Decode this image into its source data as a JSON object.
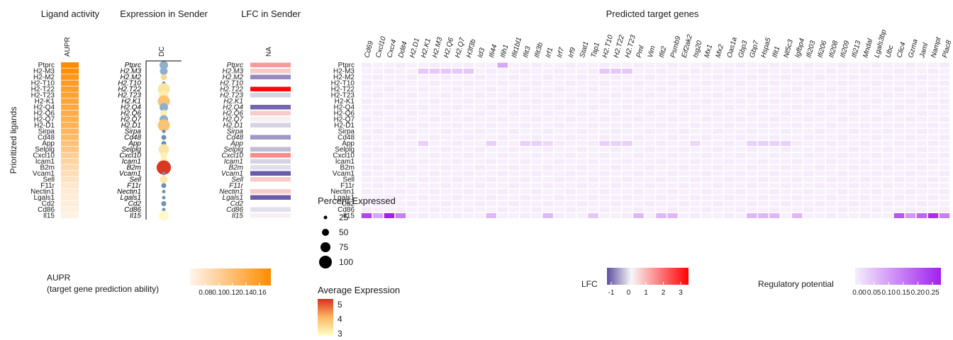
{
  "colors": {
    "aupr_low": "#FFF5EB",
    "aupr_high": "#FF8C00",
    "lfc_low": "#5E4FA2",
    "lfc_mid": "#F7F7F7",
    "lfc_high": "#FF0000",
    "reg_low": "#F5EEFC",
    "reg_high": "#A020F0",
    "expr_low": "#FFFFCC",
    "expr_mid": "#FDB863",
    "expr_high": "#D7301F"
  },
  "panels": {
    "aupr_title": "Ligand activity",
    "aupr_col": "AUPR",
    "expr_title": "Expression in Sender",
    "expr_col": "DC",
    "lfc_title": "LFC in Sender",
    "lfc_col": "NA",
    "target_title": "Predicted target genes",
    "y_label": "Prioritized ligands"
  },
  "legends": {
    "aupr_title_line1": "AUPR",
    "aupr_title_line2": "(target gene prediction ability)",
    "aupr_ticks": [
      "0.08",
      "0.10",
      "0.12",
      "0.14",
      "0.16"
    ],
    "pct_title": "Percent Expressed",
    "pct_labels": [
      "25",
      "50",
      "75",
      "100"
    ],
    "avg_title": "Average Expression",
    "avg_ticks": [
      "5",
      "4",
      "3"
    ],
    "lfc_title": "LFC",
    "lfc_ticks": [
      "-1",
      "0",
      "1",
      "2",
      "3"
    ],
    "reg_title": "Regulatory potential",
    "reg_ticks": [
      "0.00",
      "0.05",
      "0.10",
      "0.15",
      "0.20",
      "0.25"
    ]
  },
  "chart_data": {
    "type": "heatmap",
    "ligands": [
      "Ptprc",
      "H2-M3",
      "H2-M2",
      "H2-T10",
      "H2-T22",
      "H2-T23",
      "H2-K1",
      "H2-Q4",
      "H2-Q6",
      "H2-Q7",
      "H2-D1",
      "Sirpa",
      "Cd48",
      "App",
      "Selplg",
      "Cxcl10",
      "Icam1",
      "B2m",
      "Vcam1",
      "Sell",
      "F11r",
      "Nectin1",
      "Lgals1",
      "Cd2",
      "Cd86",
      "Il15"
    ],
    "ligands_italic": [
      "Ptprc",
      "H2.M3",
      "H2.M2",
      "H2.T10",
      "H2.T22",
      "H2.T23",
      "H2.K1",
      "H2.Q4",
      "H2.Q6",
      "H2.Q7",
      "H2.D1",
      "Sirpa",
      "Cd48",
      "App",
      "Selplg",
      "Cxcl10",
      "Icam1",
      "B2m",
      "Vcam1",
      "Sell",
      "F11r",
      "Nectin1",
      "Lgals1",
      "Cd2",
      "Cd86",
      "Il15"
    ],
    "aupr": [
      0.17,
      0.166,
      0.16,
      0.156,
      0.152,
      0.15,
      0.146,
      0.144,
      0.14,
      0.138,
      0.136,
      0.132,
      0.128,
      0.122,
      0.118,
      0.11,
      0.105,
      0.1,
      0.096,
      0.092,
      0.088,
      0.085,
      0.083,
      0.082,
      0.08,
      0.078
    ],
    "expression_pct": [
      30,
      25,
      15,
      5,
      60,
      35,
      60,
      30,
      20,
      30,
      60,
      5,
      10,
      10,
      45,
      20,
      25,
      85,
      5,
      25,
      10,
      5,
      5,
      10,
      5,
      40
    ],
    "expression_avg": [
      2.6,
      2.6,
      3.4,
      3.0,
      3.1,
      2.9,
      3.8,
      2.6,
      2.9,
      2.6,
      3.8,
      2.7,
      2.6,
      3.0,
      3.1,
      2.8,
      2.8,
      5.5,
      2.7,
      3.0,
      2.8,
      2.7,
      2.7,
      2.8,
      2.7,
      2.6
    ],
    "lfc": [
      1.3,
      0.6,
      -0.9,
      null,
      3.3,
      -0.3,
      null,
      -1.2,
      0.6,
      0.1,
      -0.3,
      null,
      -0.8,
      null,
      -0.5,
      1.5,
      -0.3,
      -0.2,
      -1.3,
      0.6,
      null,
      0.6,
      -1.3,
      null,
      -0.2,
      0.1
    ],
    "targets": [
      "Cd69",
      "Cxcl10",
      "Cxcr4",
      "Ddit4",
      "H2.D1",
      "H2.K1",
      "H2.M3",
      "H2.Q6",
      "H2.Q7",
      "H3f3b",
      "Id3",
      "Ifi44",
      "Ifih1",
      "Ifit1bl1",
      "Ifit3",
      "Ifit3b",
      "Irf1",
      "Irf7",
      "Irf9",
      "Stat1",
      "Tap1",
      "H2.T10",
      "H2.T22",
      "H2.T23",
      "Pml",
      "Vim",
      "Ifit2",
      "Psmb9",
      "Eif2ak2",
      "Isg20",
      "Mx1",
      "Mx2",
      "Oas1a",
      "Gbp3",
      "Gbp7",
      "Hspa5",
      "Ifit1",
      "Nt5c3",
      "Igfbp4",
      "Ifi203",
      "Ifi206",
      "Ifi208",
      "Ifi209",
      "Ifi213",
      "Mndal",
      "Lgals3bp",
      "Ubc",
      "Clic4",
      "Gzma",
      "Jaml",
      "Nampt",
      "Plac8"
    ],
    "regulatory_potential_sparse": [
      {
        "ligand": "Ptprc",
        "target": "Ifih1",
        "value": 0.1
      },
      {
        "ligand": "H2-M3",
        "target": "H2.K1",
        "value": 0.06
      },
      {
        "ligand": "H2-M3",
        "target": "H2.M3",
        "value": 0.06
      },
      {
        "ligand": "H2-M3",
        "target": "H2.Q6",
        "value": 0.06
      },
      {
        "ligand": "H2-M3",
        "target": "H2.Q7",
        "value": 0.06
      },
      {
        "ligand": "H2-M3",
        "target": "H3f3b",
        "value": 0.06
      },
      {
        "ligand": "H2-M3",
        "target": "H2.T10",
        "value": 0.06
      },
      {
        "ligand": "H2-M3",
        "target": "H2.T22",
        "value": 0.06
      },
      {
        "ligand": "H2-M3",
        "target": "H2.T23",
        "value": 0.06
      },
      {
        "ligand": "App",
        "target": "H2.K1",
        "value": 0.05
      },
      {
        "ligand": "App",
        "target": "Ifi44",
        "value": 0.05
      },
      {
        "ligand": "App",
        "target": "Ifit3",
        "value": 0.05
      },
      {
        "ligand": "App",
        "target": "Ifit3b",
        "value": 0.05
      },
      {
        "ligand": "App",
        "target": "Irf1",
        "value": 0.04
      },
      {
        "ligand": "App",
        "target": "H2.T10",
        "value": 0.05
      },
      {
        "ligand": "App",
        "target": "H2.T22",
        "value": 0.05
      },
      {
        "ligand": "App",
        "target": "H2.T23",
        "value": 0.05
      },
      {
        "ligand": "App",
        "target": "Isg20",
        "value": 0.04
      },
      {
        "ligand": "App",
        "target": "Gbp7",
        "value": 0.05
      },
      {
        "ligand": "App",
        "target": "Hspa5",
        "value": 0.05
      },
      {
        "ligand": "App",
        "target": "Ifit1",
        "value": 0.05
      },
      {
        "ligand": "App",
        "target": "Nt5c3",
        "value": 0.05
      },
      {
        "ligand": "Il15",
        "target": "Cd69",
        "value": 0.22
      },
      {
        "ligand": "Il15",
        "target": "Cxcl10",
        "value": 0.1
      },
      {
        "ligand": "Il15",
        "target": "Cxcr4",
        "value": 0.3
      },
      {
        "ligand": "Il15",
        "target": "Ddit4",
        "value": 0.15
      },
      {
        "ligand": "Il15",
        "target": "Ifi44",
        "value": 0.08
      },
      {
        "ligand": "Il15",
        "target": "Irf1",
        "value": 0.08
      },
      {
        "ligand": "Il15",
        "target": "Tap1",
        "value": 0.06
      },
      {
        "ligand": "Il15",
        "target": "Pml",
        "value": 0.08
      },
      {
        "ligand": "Il15",
        "target": "Ifit2",
        "value": 0.08
      },
      {
        "ligand": "Il15",
        "target": "Psmb9",
        "value": 0.08
      },
      {
        "ligand": "Il15",
        "target": "Gbp7",
        "value": 0.08
      },
      {
        "ligand": "Il15",
        "target": "Hspa5",
        "value": 0.08
      },
      {
        "ligand": "Il15",
        "target": "Ifit1",
        "value": 0.08
      },
      {
        "ligand": "Il15",
        "target": "Igfbp4",
        "value": 0.08
      },
      {
        "ligand": "Il15",
        "target": "Clic4",
        "value": 0.2
      },
      {
        "ligand": "Il15",
        "target": "Gzma",
        "value": 0.12
      },
      {
        "ligand": "Il15",
        "target": "Jaml",
        "value": 0.18
      },
      {
        "ligand": "Il15",
        "target": "Nampt",
        "value": 0.25
      },
      {
        "ligand": "Il15",
        "target": "Plac8",
        "value": 0.15
      }
    ],
    "regulatory_potential_background": 0.01,
    "aupr_range": [
      0.075,
      0.17
    ],
    "lfc_range": [
      -1.4,
      3.4
    ],
    "reg_range": [
      0,
      0.28
    ],
    "avg_range": [
      2.5,
      5.6
    ]
  }
}
